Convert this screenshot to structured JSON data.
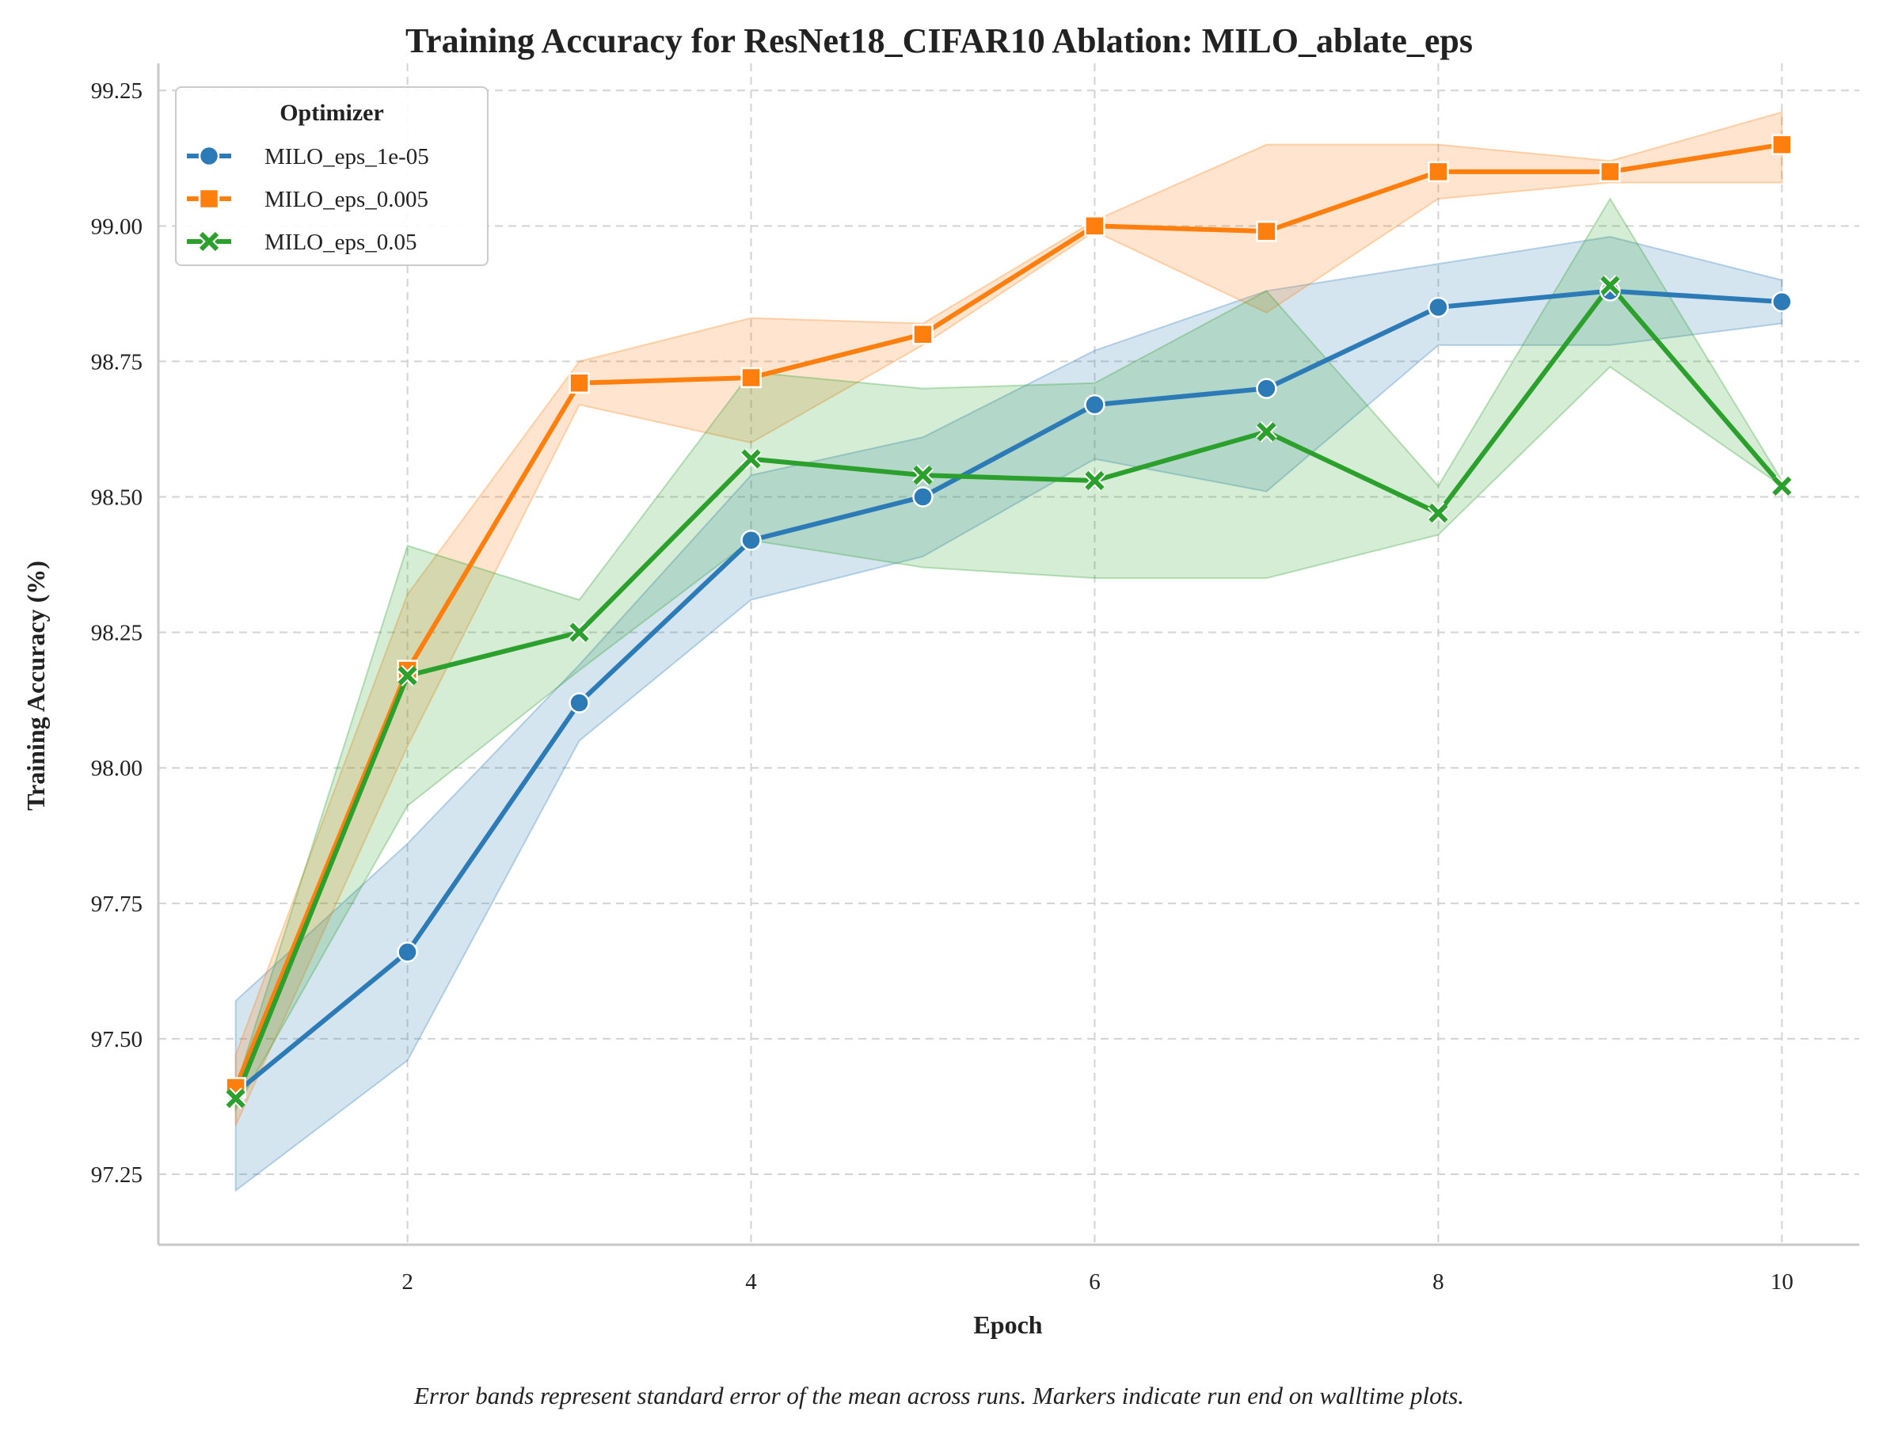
{
  "chart_data": {
    "type": "line",
    "title": "Training Accuracy for ResNet18_CIFAR10 Ablation: MILO_ablate_eps",
    "xlabel": "Epoch",
    "ylabel": "Training Accuracy (%)",
    "xlim": [
      0.55,
      10.45
    ],
    "ylim": [
      97.12,
      99.3
    ],
    "xticks": [
      2,
      4,
      6,
      8,
      10
    ],
    "xtick_labels": [
      "2",
      "4",
      "6",
      "8",
      "10"
    ],
    "yticks": [
      97.25,
      97.5,
      97.75,
      98.0,
      98.25,
      98.5,
      98.75,
      99.0,
      99.25
    ],
    "ytick_labels": [
      "97.25",
      "97.50",
      "97.75",
      "98.00",
      "98.25",
      "98.50",
      "98.75",
      "99.00",
      "99.25"
    ],
    "grid": true,
    "legend_title": "Optimizer",
    "legend_position": "top-left",
    "caption": "Error bands represent standard error of the mean across runs. Markers indicate run end on walltime plots.",
    "x": [
      1,
      2,
      3,
      4,
      5,
      6,
      7,
      8,
      9,
      10
    ],
    "series": [
      {
        "name": "MILO_eps_1e-05",
        "color": "#2c7bb6",
        "marker": "circle",
        "values": [
          97.4,
          97.66,
          98.12,
          98.42,
          98.5,
          98.67,
          98.7,
          98.85,
          98.88,
          98.86
        ],
        "lower": [
          97.22,
          97.46,
          98.05,
          98.31,
          98.39,
          98.57,
          98.51,
          98.78,
          98.78,
          98.82
        ],
        "upper": [
          97.57,
          97.86,
          98.19,
          98.54,
          98.61,
          98.77,
          98.88,
          98.93,
          98.98,
          98.9
        ]
      },
      {
        "name": "MILO_eps_0.005",
        "color": "#ff7f0e",
        "marker": "square",
        "values": [
          97.41,
          98.18,
          98.71,
          98.72,
          98.8,
          99.0,
          98.99,
          99.1,
          99.1,
          99.15
        ],
        "lower": [
          97.34,
          98.04,
          98.67,
          98.6,
          98.78,
          98.99,
          98.84,
          99.05,
          99.08,
          99.08
        ],
        "upper": [
          97.47,
          98.32,
          98.75,
          98.83,
          98.82,
          99.01,
          99.15,
          99.15,
          99.12,
          99.21
        ]
      },
      {
        "name": "MILO_eps_0.05",
        "color": "#2ca02c",
        "marker": "x",
        "values": [
          97.39,
          98.17,
          98.25,
          98.57,
          98.54,
          98.53,
          98.62,
          98.47,
          98.89,
          98.52
        ],
        "lower": [
          97.37,
          97.93,
          98.18,
          98.42,
          98.37,
          98.35,
          98.35,
          98.43,
          98.74,
          98.52
        ],
        "upper": [
          97.41,
          98.41,
          98.31,
          98.73,
          98.7,
          98.71,
          98.88,
          98.52,
          99.05,
          98.53
        ]
      }
    ]
  }
}
